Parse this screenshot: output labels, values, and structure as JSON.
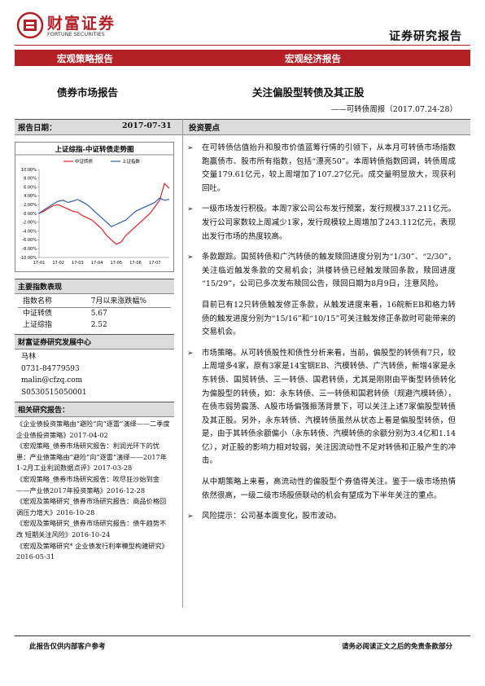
{
  "header": {
    "logo_cn": "财富证券",
    "logo_en": "FORTUNE SECURITIES",
    "doc_type": "证券研究报告"
  },
  "banner": {
    "left": "宏观策略报告",
    "right": "宏观经济报告"
  },
  "title": {
    "left": "债券市场报告",
    "main": "关注偏股型转债及其正股",
    "sub": "——可转债周报（2017.07.24-28）"
  },
  "report_date": {
    "label": "报告日期：",
    "value": "2017-07-31"
  },
  "summary": {
    "heading": "投资要点",
    "items": [
      {
        "bullet": true,
        "text": "在可转债估值抬升和股市价值蓝筹行情的引领下，从本月可转债市场指数跑赢债市、股市所有指数，包括“漂亮50”。本周转债指数回调，转债周成交量179.61亿元，较上周增加了107.27亿元。成交量明显放大，现获利回吐。"
      },
      {
        "bullet": true,
        "text": "一级市场发行积极。本周7家公司公布发行预案，发行规模337.211亿元。发行公司家数较上周减少1家，发行规模较上周增加了243.112亿元，表现出发行市场的热度较高。"
      },
      {
        "bullet": true,
        "text": "条款跟踪。国贸转债和广汽转债的触发赎回进度分别为“1/30”、“2/30”，关注临近触发条款的交易机会；洪楼转债已经触发赎回条款，赎回进度“15/29”，公司已多次发布赎回公告，赎回日期为8月9日，注意风险。"
      },
      {
        "bullet": false,
        "text": "目前已有12只转债触发修正条款，从触发进度来看，16皖新EB和格力转债的触发进度分别为“15/16”和“10/15”可关注触发修正条款时可能带来的交易机会。"
      },
      {
        "bullet": true,
        "text": "市场策略。从可转债股性和债性分析来看，当前，偏股型的转债有7只，较上周增多4家，原有3家是14宝钢EB、汽模转债、广汽转债，新增4家是永东转债、国贸转债、三一转债、国君转债，尤其是刚刚由平衡型转债转化为偏股型的转债，如：永东转债、三一转债和国君转债（规避汽模转债），在债市弱势震荡、A股市场偏强振荡背景下，可以关注上述7家偏股型转债及其正股。另外，永东转债、汽模转债虽然从状态上看是偏股型转债，但是，由于其转债余额偏小（永东转债、汽模转债的余额分别为3.4亿和1.14亿），对正股的影响力相对较弱，关注因流动性不足对转债和正股产生的冲击。"
      },
      {
        "bullet": false,
        "text": "从中期策略上来看，高流动性的偏股型个券值得关注。鉴于一级市场热情依然很高，一级二级市场股债联动的机会有望成为下半年关注的重点。"
      },
      {
        "bullet": true,
        "text": "风险提示：公司基本面变化，股市波动。"
      }
    ]
  },
  "chart_data": {
    "type": "line",
    "title": "上证综指-中证转债走势图",
    "categories": [
      "17-01",
      null,
      null,
      null,
      "17-02",
      null,
      null,
      null,
      "17-03",
      null,
      null,
      null,
      "17-04",
      null,
      null,
      null,
      "17-05",
      null,
      null,
      null,
      "17-06",
      null,
      null,
      null,
      "17-07",
      null,
      null,
      null
    ],
    "series": [
      {
        "name": "中证转债",
        "color": "#e8202a",
        "values": [
          0,
          0.5,
          1.2,
          1.8,
          2,
          1.5,
          1,
          0.5,
          0.3,
          -0.5,
          -1,
          -1.5,
          -2.5,
          -3.5,
          -5,
          -6,
          -7,
          -6.5,
          -5,
          -4,
          -3,
          -2,
          -1,
          0,
          1.5,
          3,
          6.8,
          5.7
        ]
      },
      {
        "name": "上证指数",
        "color": "#2f5fb3",
        "values": [
          0,
          0.8,
          1.5,
          2.2,
          2.8,
          3,
          2.5,
          2.8,
          3.2,
          2.6,
          2,
          1,
          0,
          -1,
          -2,
          -3,
          -2.5,
          -2,
          -1.5,
          -0.5,
          0.5,
          1,
          1.5,
          2,
          2.5,
          3.5,
          3,
          3.2
        ]
      }
    ],
    "ylim": [
      -10,
      10
    ],
    "yticks": [
      {
        "value": -10,
        "label": "-10.00%"
      },
      {
        "value": -8,
        "label": "-8.00%"
      },
      {
        "value": -6,
        "label": "-6.00%"
      },
      {
        "value": -4,
        "label": "-4.00%"
      },
      {
        "value": -2,
        "label": "-2.00%"
      },
      {
        "value": 0,
        "label": "0.00%"
      },
      {
        "value": 2,
        "label": "2.00%"
      },
      {
        "value": 4,
        "label": "4.00%"
      },
      {
        "value": 6,
        "label": "6.00%"
      },
      {
        "value": 8,
        "label": "8.00%"
      },
      {
        "value": 10,
        "label": "10.00%"
      }
    ]
  },
  "index_table": {
    "title": "主要指数表现",
    "header": [
      "指数名称",
      "7月以来涨跌幅%"
    ],
    "rows": [
      [
        "中证转债",
        5.67
      ],
      [
        "上证综指",
        2.52
      ]
    ]
  },
  "center": {
    "title": "财富证券研究发展中心",
    "lines": [
      "马林",
      "0731-84779593",
      "malin@cfzq.com",
      "S0530515050001"
    ]
  },
  "related": {
    "title": "相关研究报告：",
    "items": [
      "《企业债投资策略由“避险”向“逐雷”演绎——二季度企业债投资策略》2017-04-02",
      "《宏观策略_债券市场研究报告：利润光环下的忧患：产业债策略由“避险”向“逐雷”演绎——2017年1-2月工业利润数据点评》2017-03-28",
      "《宏观策略_债券市场研究报告：吹尽狂沙始到金——产业债2017年投资策略》2016-12-28",
      "《宏观及策略研究_债券市场研究报告：商品价格回调压力增大》2016-10-28",
      "《宏观及策略研究_债券市场研究报告：债牛趋势不改 短期关注风险》2016-10-24",
      "《宏观及策略研究* 企业债发行利率模型构建研究》2016-05-31"
    ]
  },
  "footer": {
    "left": "此报告仅供内部客户参考",
    "right": "请务必阅读正文之后的免责条款部分"
  }
}
